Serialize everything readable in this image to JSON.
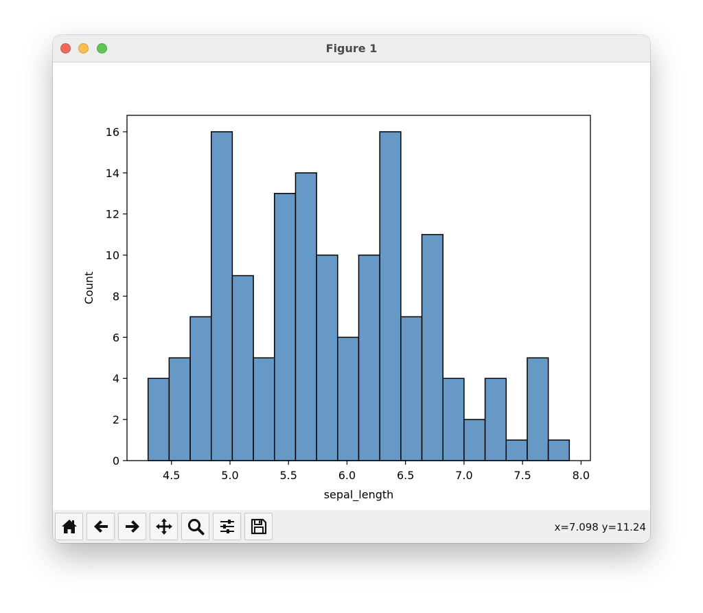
{
  "window": {
    "title": "Figure 1"
  },
  "toolbar": {
    "buttons": [
      {
        "name": "home-button",
        "icon": "home-icon"
      },
      {
        "name": "back-button",
        "icon": "arrow-left-icon"
      },
      {
        "name": "forward-button",
        "icon": "arrow-right-icon"
      },
      {
        "name": "pan-button",
        "icon": "move-icon"
      },
      {
        "name": "zoom-button",
        "icon": "magnifier-icon"
      },
      {
        "name": "configure-subplots-button",
        "icon": "sliders-icon"
      },
      {
        "name": "save-button",
        "icon": "floppy-disk-icon"
      }
    ],
    "coords": "x=7.098 y=11.24"
  },
  "chart_data": {
    "type": "bar",
    "title": "",
    "xlabel": "sepal_length",
    "ylabel": "Count",
    "bar_color": "#6699c6",
    "edge_color": "#000000",
    "bin_edges": [
      4.3,
      4.48,
      4.66,
      4.84,
      5.02,
      5.2,
      5.38,
      5.56,
      5.74,
      5.92,
      6.1,
      6.28,
      6.46,
      6.64,
      6.82,
      7.0,
      7.18,
      7.36,
      7.54,
      7.72,
      7.9
    ],
    "values": [
      4,
      5,
      7,
      16,
      9,
      5,
      13,
      14,
      10,
      6,
      10,
      16,
      7,
      11,
      4,
      2,
      4,
      1,
      5,
      1
    ],
    "xlim": [
      4.12,
      8.08
    ],
    "ylim": [
      0,
      16.8
    ],
    "xticks": [
      "4.5",
      "5.0",
      "5.5",
      "6.0",
      "6.5",
      "7.0",
      "7.5",
      "8.0"
    ],
    "yticks": [
      "0",
      "2",
      "4",
      "6",
      "8",
      "10",
      "12",
      "14",
      "16"
    ],
    "grid": false
  }
}
